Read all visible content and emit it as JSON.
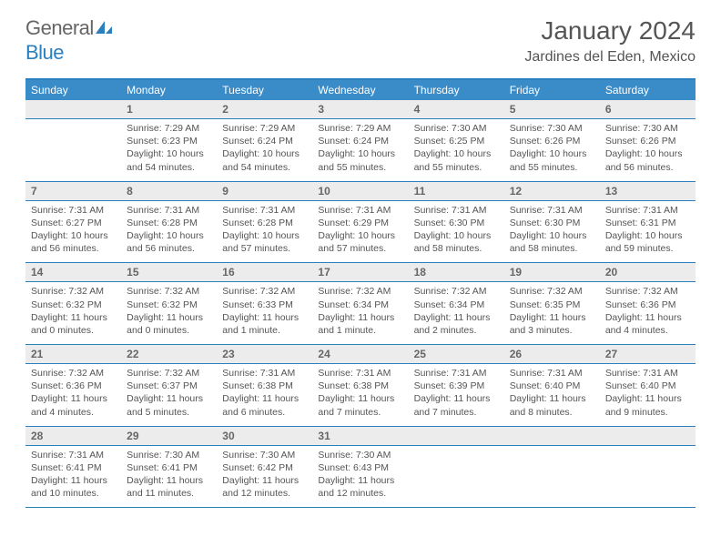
{
  "logo": {
    "text1": "General",
    "text2": "Blue"
  },
  "title": "January 2024",
  "location": "Jardines del Eden, Mexico",
  "dow": [
    "Sunday",
    "Monday",
    "Tuesday",
    "Wednesday",
    "Thursday",
    "Friday",
    "Saturday"
  ],
  "colors": {
    "header_bar": "#3a8cc9",
    "accent": "#2a7fbf",
    "daynum_bg": "#ececec"
  },
  "weeks": [
    {
      "nums": [
        "",
        "1",
        "2",
        "3",
        "4",
        "5",
        "6"
      ],
      "cells": [
        {},
        {
          "sr": "Sunrise: 7:29 AM",
          "ss": "Sunset: 6:23 PM",
          "dl": "Daylight: 10 hours and 54 minutes."
        },
        {
          "sr": "Sunrise: 7:29 AM",
          "ss": "Sunset: 6:24 PM",
          "dl": "Daylight: 10 hours and 54 minutes."
        },
        {
          "sr": "Sunrise: 7:29 AM",
          "ss": "Sunset: 6:24 PM",
          "dl": "Daylight: 10 hours and 55 minutes."
        },
        {
          "sr": "Sunrise: 7:30 AM",
          "ss": "Sunset: 6:25 PM",
          "dl": "Daylight: 10 hours and 55 minutes."
        },
        {
          "sr": "Sunrise: 7:30 AM",
          "ss": "Sunset: 6:26 PM",
          "dl": "Daylight: 10 hours and 55 minutes."
        },
        {
          "sr": "Sunrise: 7:30 AM",
          "ss": "Sunset: 6:26 PM",
          "dl": "Daylight: 10 hours and 56 minutes."
        }
      ]
    },
    {
      "nums": [
        "7",
        "8",
        "9",
        "10",
        "11",
        "12",
        "13"
      ],
      "cells": [
        {
          "sr": "Sunrise: 7:31 AM",
          "ss": "Sunset: 6:27 PM",
          "dl": "Daylight: 10 hours and 56 minutes."
        },
        {
          "sr": "Sunrise: 7:31 AM",
          "ss": "Sunset: 6:28 PM",
          "dl": "Daylight: 10 hours and 56 minutes."
        },
        {
          "sr": "Sunrise: 7:31 AM",
          "ss": "Sunset: 6:28 PM",
          "dl": "Daylight: 10 hours and 57 minutes."
        },
        {
          "sr": "Sunrise: 7:31 AM",
          "ss": "Sunset: 6:29 PM",
          "dl": "Daylight: 10 hours and 57 minutes."
        },
        {
          "sr": "Sunrise: 7:31 AM",
          "ss": "Sunset: 6:30 PM",
          "dl": "Daylight: 10 hours and 58 minutes."
        },
        {
          "sr": "Sunrise: 7:31 AM",
          "ss": "Sunset: 6:30 PM",
          "dl": "Daylight: 10 hours and 58 minutes."
        },
        {
          "sr": "Sunrise: 7:31 AM",
          "ss": "Sunset: 6:31 PM",
          "dl": "Daylight: 10 hours and 59 minutes."
        }
      ]
    },
    {
      "nums": [
        "14",
        "15",
        "16",
        "17",
        "18",
        "19",
        "20"
      ],
      "cells": [
        {
          "sr": "Sunrise: 7:32 AM",
          "ss": "Sunset: 6:32 PM",
          "dl": "Daylight: 11 hours and 0 minutes."
        },
        {
          "sr": "Sunrise: 7:32 AM",
          "ss": "Sunset: 6:32 PM",
          "dl": "Daylight: 11 hours and 0 minutes."
        },
        {
          "sr": "Sunrise: 7:32 AM",
          "ss": "Sunset: 6:33 PM",
          "dl": "Daylight: 11 hours and 1 minute."
        },
        {
          "sr": "Sunrise: 7:32 AM",
          "ss": "Sunset: 6:34 PM",
          "dl": "Daylight: 11 hours and 1 minute."
        },
        {
          "sr": "Sunrise: 7:32 AM",
          "ss": "Sunset: 6:34 PM",
          "dl": "Daylight: 11 hours and 2 minutes."
        },
        {
          "sr": "Sunrise: 7:32 AM",
          "ss": "Sunset: 6:35 PM",
          "dl": "Daylight: 11 hours and 3 minutes."
        },
        {
          "sr": "Sunrise: 7:32 AM",
          "ss": "Sunset: 6:36 PM",
          "dl": "Daylight: 11 hours and 4 minutes."
        }
      ]
    },
    {
      "nums": [
        "21",
        "22",
        "23",
        "24",
        "25",
        "26",
        "27"
      ],
      "cells": [
        {
          "sr": "Sunrise: 7:32 AM",
          "ss": "Sunset: 6:36 PM",
          "dl": "Daylight: 11 hours and 4 minutes."
        },
        {
          "sr": "Sunrise: 7:32 AM",
          "ss": "Sunset: 6:37 PM",
          "dl": "Daylight: 11 hours and 5 minutes."
        },
        {
          "sr": "Sunrise: 7:31 AM",
          "ss": "Sunset: 6:38 PM",
          "dl": "Daylight: 11 hours and 6 minutes."
        },
        {
          "sr": "Sunrise: 7:31 AM",
          "ss": "Sunset: 6:38 PM",
          "dl": "Daylight: 11 hours and 7 minutes."
        },
        {
          "sr": "Sunrise: 7:31 AM",
          "ss": "Sunset: 6:39 PM",
          "dl": "Daylight: 11 hours and 7 minutes."
        },
        {
          "sr": "Sunrise: 7:31 AM",
          "ss": "Sunset: 6:40 PM",
          "dl": "Daylight: 11 hours and 8 minutes."
        },
        {
          "sr": "Sunrise: 7:31 AM",
          "ss": "Sunset: 6:40 PM",
          "dl": "Daylight: 11 hours and 9 minutes."
        }
      ]
    },
    {
      "nums": [
        "28",
        "29",
        "30",
        "31",
        "",
        "",
        ""
      ],
      "cells": [
        {
          "sr": "Sunrise: 7:31 AM",
          "ss": "Sunset: 6:41 PM",
          "dl": "Daylight: 11 hours and 10 minutes."
        },
        {
          "sr": "Sunrise: 7:30 AM",
          "ss": "Sunset: 6:41 PM",
          "dl": "Daylight: 11 hours and 11 minutes."
        },
        {
          "sr": "Sunrise: 7:30 AM",
          "ss": "Sunset: 6:42 PM",
          "dl": "Daylight: 11 hours and 12 minutes."
        },
        {
          "sr": "Sunrise: 7:30 AM",
          "ss": "Sunset: 6:43 PM",
          "dl": "Daylight: 11 hours and 12 minutes."
        },
        {},
        {},
        {}
      ]
    }
  ]
}
